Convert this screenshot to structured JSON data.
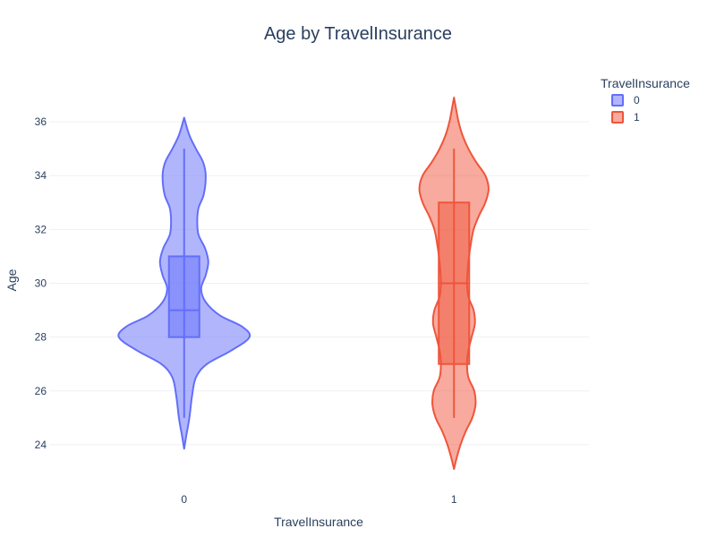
{
  "chart_data": {
    "type": "violin",
    "title": "Age by TravelInsurance",
    "xlabel": "TravelInsurance",
    "ylabel": "Age",
    "categories": [
      "0",
      "1"
    ],
    "ylim": [
      22.9,
      37.2
    ],
    "yticks": [
      24,
      26,
      28,
      30,
      32,
      34,
      36
    ],
    "grid": true,
    "legend": {
      "title": "TravelInsurance",
      "placement": "top-right"
    },
    "series": [
      {
        "name": "0",
        "color": "#636efa",
        "fill": "rgba(99,110,250,0.5)",
        "box": {
          "q1": 28,
          "median": 29,
          "q3": 31,
          "whisker_low": 25,
          "whisker_high": 35
        },
        "violin_extent": [
          23.85,
          36.15
        ],
        "density": [
          [
            23.85,
            0.0
          ],
          [
            24.3,
            0.03
          ],
          [
            25.0,
            0.08
          ],
          [
            25.8,
            0.12
          ],
          [
            26.5,
            0.18
          ],
          [
            27.0,
            0.35
          ],
          [
            27.5,
            0.72
          ],
          [
            28.0,
            1.0
          ],
          [
            28.4,
            0.88
          ],
          [
            28.8,
            0.55
          ],
          [
            29.3,
            0.33
          ],
          [
            29.8,
            0.26
          ],
          [
            30.3,
            0.33
          ],
          [
            30.8,
            0.37
          ],
          [
            31.3,
            0.32
          ],
          [
            31.8,
            0.22
          ],
          [
            32.3,
            0.2
          ],
          [
            32.8,
            0.22
          ],
          [
            33.3,
            0.3
          ],
          [
            34.0,
            0.33
          ],
          [
            34.5,
            0.29
          ],
          [
            35.0,
            0.18
          ],
          [
            35.5,
            0.08
          ],
          [
            36.15,
            0.0
          ]
        ]
      },
      {
        "name": "1",
        "color": "#ef553b",
        "fill": "rgba(239,85,59,0.5)",
        "box": {
          "q1": 27,
          "median": 30,
          "q3": 33,
          "whisker_low": 25,
          "whisker_high": 35
        },
        "violin_extent": [
          23.1,
          36.9
        ],
        "density": [
          [
            23.1,
            0.0
          ],
          [
            23.5,
            0.04
          ],
          [
            24.0,
            0.1
          ],
          [
            24.5,
            0.18
          ],
          [
            25.0,
            0.28
          ],
          [
            25.5,
            0.33
          ],
          [
            26.0,
            0.31
          ],
          [
            26.5,
            0.22
          ],
          [
            27.0,
            0.2
          ],
          [
            27.5,
            0.22
          ],
          [
            28.0,
            0.27
          ],
          [
            28.5,
            0.32
          ],
          [
            29.0,
            0.3
          ],
          [
            29.5,
            0.22
          ],
          [
            30.0,
            0.2
          ],
          [
            30.5,
            0.21
          ],
          [
            31.0,
            0.23
          ],
          [
            31.5,
            0.26
          ],
          [
            32.0,
            0.3
          ],
          [
            32.5,
            0.38
          ],
          [
            33.0,
            0.48
          ],
          [
            33.5,
            0.53
          ],
          [
            34.0,
            0.48
          ],
          [
            34.5,
            0.34
          ],
          [
            35.0,
            0.22
          ],
          [
            35.5,
            0.13
          ],
          [
            36.0,
            0.07
          ],
          [
            36.5,
            0.03
          ],
          [
            36.9,
            0.0
          ]
        ]
      }
    ]
  }
}
